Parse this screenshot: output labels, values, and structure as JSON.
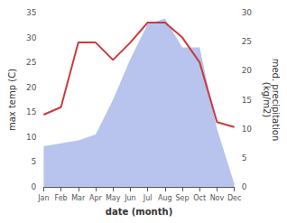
{
  "chart_data": {
    "type": "line",
    "categories": [
      "Jan",
      "Feb",
      "Mar",
      "Apr",
      "May",
      "Jun",
      "Jul",
      "Aug",
      "Sep",
      "Oct",
      "Nov",
      "Dec"
    ],
    "series": [
      {
        "type": "area",
        "axis": "y2",
        "color": "#b8c4ee",
        "values": [
          7.0,
          7.5,
          8.0,
          9.0,
          15.0,
          22.0,
          28.0,
          29.0,
          24.0,
          24.0,
          10.0,
          0.5
        ]
      },
      {
        "type": "line",
        "color": "#c93b3b",
        "values": [
          14.5,
          16.0,
          29.0,
          29.0,
          25.5,
          29.0,
          33.0,
          33.0,
          30.0,
          25.0,
          13.0,
          12.0
        ]
      }
    ],
    "xlabel": "date (month)",
    "ylabel": "max temp (C)",
    "y2label": "med. precipitation\n(kg/m2)",
    "ylim": [
      0,
      35
    ],
    "yticks": [
      0,
      5,
      10,
      15,
      20,
      25,
      30,
      35
    ],
    "y2lim": [
      0,
      30
    ],
    "y2ticks": [
      0,
      5,
      10,
      15,
      20,
      25,
      30
    ],
    "grid": false
  }
}
